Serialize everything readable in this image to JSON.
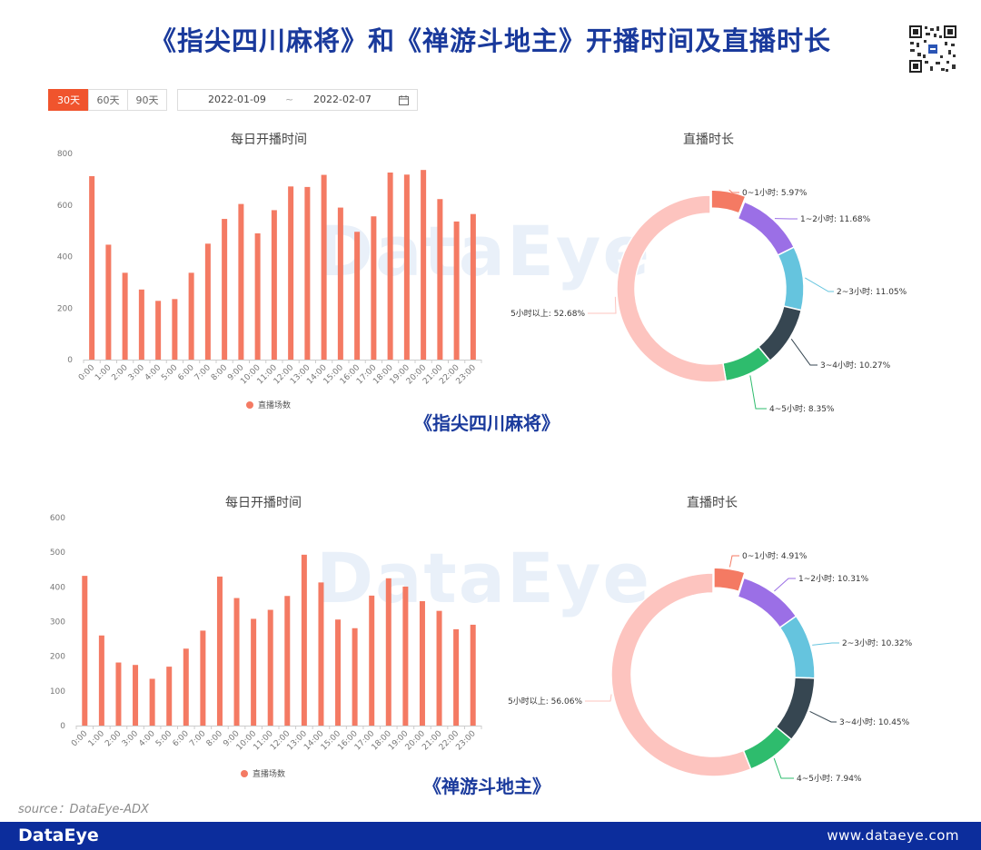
{
  "page": {
    "title": "《指尖四川麻将》和《禅游斗地主》开播时间及直播时长",
    "source": "source：DataEye-ADX",
    "footer_logo": "DataEye",
    "footer_url": "www.dataeye.com",
    "watermark": "DataEye",
    "qr_icon": "qr-code-icon"
  },
  "toolbar": {
    "tabs": [
      {
        "label": "30天",
        "active": true
      },
      {
        "label": "60天",
        "active": false
      },
      {
        "label": "90天",
        "active": false
      }
    ],
    "date_start": "2022-01-09",
    "date_sep": "~",
    "date_end": "2022-02-07",
    "calendar_icon": "calendar-icon"
  },
  "panels": [
    {
      "game_title": "《指尖四川麻将》",
      "bar_title": "每日开播时间",
      "donut_title": "直播时长"
    },
    {
      "game_title": "《禅游斗地主》",
      "bar_title": "每日开播时间",
      "donut_title": "直播时长"
    }
  ],
  "colors": {
    "bar": "#f47a63",
    "title": "#1a3a9c",
    "footer": "#0c2d9c",
    "donut": [
      "#f47a63",
      "#9b6fe6",
      "#65c4de",
      "#364651",
      "#2ebc6d",
      "#fdc4bf"
    ]
  },
  "chart_data": [
    {
      "type": "bar",
      "title": "每日开播时间",
      "categories": [
        "0:00",
        "1:00",
        "2:00",
        "3:00",
        "4:00",
        "5:00",
        "6:00",
        "7:00",
        "8:00",
        "9:00",
        "10:00",
        "11:00",
        "12:00",
        "13:00",
        "14:00",
        "15:00",
        "16:00",
        "17:00",
        "18:00",
        "19:00",
        "20:00",
        "21:00",
        "22:00",
        "23:00"
      ],
      "series": [
        {
          "name": "直播场数",
          "values": [
            712,
            446,
            337,
            272,
            228,
            235,
            337,
            450,
            546,
            604,
            490,
            580,
            672,
            670,
            717,
            590,
            496,
            556,
            726,
            718,
            736,
            623,
            536,
            565
          ]
        }
      ],
      "yticks": [
        0,
        200,
        400,
        600,
        800
      ],
      "ylim": [
        0,
        800
      ],
      "legend": "bottom-center"
    },
    {
      "type": "pie",
      "title": "直播时长",
      "labels": [
        "0~1小时",
        "1~2小时",
        "2~3小时",
        "3~4小时",
        "4~5小时",
        "5小时以上"
      ],
      "values": [
        5.97,
        11.68,
        11.05,
        10.27,
        8.35,
        52.68
      ],
      "display": [
        "0~1小时: 5.97%",
        "1~2小时: 11.68%",
        "2~3小时: 11.05%",
        "3~4小时: 10.27%",
        "4~5小时: 8.35%",
        "5小时以上: 52.68%"
      ]
    },
    {
      "type": "bar",
      "title": "每日开播时间",
      "categories": [
        "0:00",
        "1:00",
        "2:00",
        "3:00",
        "4:00",
        "5:00",
        "6:00",
        "7:00",
        "8:00",
        "9:00",
        "10:00",
        "11:00",
        "12:00",
        "13:00",
        "14:00",
        "15:00",
        "16:00",
        "17:00",
        "18:00",
        "19:00",
        "20:00",
        "21:00",
        "22:00",
        "23:00"
      ],
      "series": [
        {
          "name": "直播场数",
          "values": [
            432,
            260,
            182,
            175,
            135,
            170,
            222,
            274,
            430,
            368,
            308,
            334,
            374,
            493,
            413,
            306,
            281,
            375,
            425,
            401,
            359,
            331,
            278,
            291
          ]
        }
      ],
      "yticks": [
        0,
        100,
        200,
        300,
        400,
        500,
        600
      ],
      "ylim": [
        0,
        600
      ],
      "legend": "bottom-center"
    },
    {
      "type": "pie",
      "title": "直播时长",
      "labels": [
        "0~1小时",
        "1~2小时",
        "2~3小时",
        "3~4小时",
        "4~5小时",
        "5小时以上"
      ],
      "values": [
        4.91,
        10.31,
        10.32,
        10.45,
        7.94,
        56.06
      ],
      "display": [
        "0~1小时: 4.91%",
        "1~2小时: 10.31%",
        "2~3小时: 10.32%",
        "3~4小时: 10.45%",
        "4~5小时: 7.94%",
        "5小时以上: 56.06%"
      ]
    }
  ]
}
